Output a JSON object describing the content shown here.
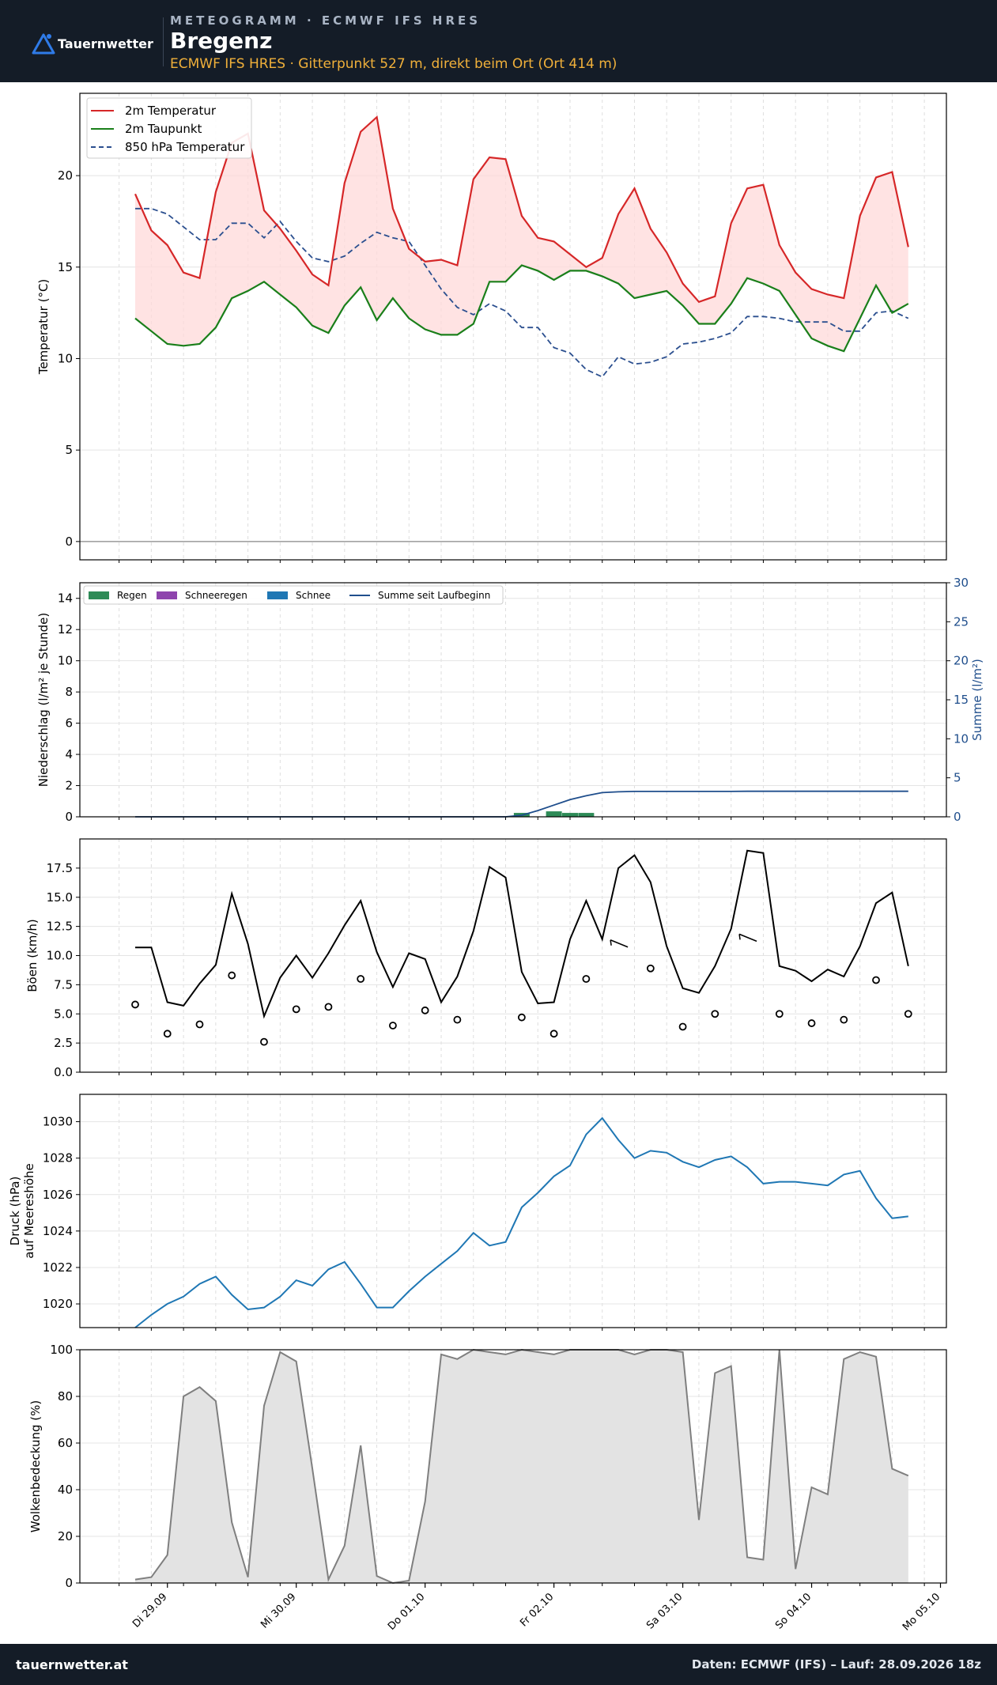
{
  "header": {
    "brand": "Tauernwetter",
    "kicker": "METEOGRAMM · ECMWF IFS HRES",
    "location": "Bregenz",
    "subtitle": "ECMWF IFS HRES · Gitterpunkt 527 m, direkt beim Ort (Ort 414 m)"
  },
  "footer": {
    "site": "tauernwetter.at",
    "source": "Daten: ECMWF (IFS) – Lauf: 28.09.2026 18z"
  },
  "colors": {
    "header_bg": "#141c27",
    "accent": "#f0b03a",
    "temperature": "#d62728",
    "dewpoint": "#1a7f1a",
    "t850": "#2b4f8f",
    "rain": "#2e8b57",
    "sleet": "#8e44ad",
    "snow": "#1f77b4",
    "precip_sum": "#1f4e8c",
    "pressure": "#1f77b4",
    "clouds": "#7f7f7f"
  },
  "chart_data": [
    {
      "type": "line",
      "ylabel": "Temperatur (°C)",
      "ylim": [
        -1,
        24.5
      ],
      "yticks": [
        0,
        5,
        10,
        15,
        20
      ],
      "grid": true,
      "legend": "top-left",
      "x_start": "2026-09-29T00:00",
      "step_hours": 3,
      "series": [
        {
          "name": "2m Temperatur",
          "style": "solid",
          "values": [
            19.0,
            17.0,
            16.2,
            14.7,
            14.4,
            19.1,
            21.8,
            22.3,
            18.1,
            17.1,
            15.9,
            14.6,
            14.0,
            19.6,
            22.4,
            23.2,
            18.2,
            16.0,
            15.3,
            15.4,
            15.1,
            19.8,
            21.0,
            20.9,
            17.8,
            16.6,
            16.4,
            15.7,
            15.0,
            15.5,
            17.9,
            19.3,
            17.1,
            15.8,
            14.1,
            13.1,
            13.4,
            17.4,
            19.3,
            19.5,
            16.2,
            14.7,
            13.8,
            13.5,
            13.3,
            17.8,
            19.9,
            20.2,
            16.1
          ]
        },
        {
          "name": "2m Taupunkt",
          "style": "solid",
          "values": [
            12.2,
            11.5,
            10.8,
            10.7,
            10.8,
            11.7,
            13.3,
            13.7,
            14.2,
            13.5,
            12.8,
            11.8,
            11.4,
            12.9,
            13.9,
            12.1,
            13.3,
            12.2,
            11.6,
            11.3,
            11.3,
            11.9,
            14.2,
            14.2,
            15.1,
            14.8,
            14.3,
            14.8,
            14.8,
            14.5,
            14.1,
            13.3,
            13.5,
            13.7,
            12.9,
            11.9,
            11.9,
            13.0,
            14.4,
            14.1,
            13.7,
            12.4,
            11.1,
            10.7,
            10.4,
            12.2,
            14.0,
            12.5,
            13.0
          ]
        },
        {
          "name": "850 hPa Temperatur",
          "style": "dashed",
          "values": [
            18.2,
            18.2,
            17.9,
            17.2,
            16.5,
            16.5,
            17.4,
            17.4,
            16.6,
            17.5,
            16.4,
            15.5,
            15.3,
            15.6,
            16.3,
            16.9,
            16.6,
            16.4,
            15.1,
            13.8,
            12.8,
            12.4,
            13.0,
            12.6,
            11.7,
            11.7,
            10.6,
            10.3,
            9.4,
            9.0,
            10.1,
            9.7,
            9.8,
            10.1,
            10.8,
            10.9,
            11.1,
            11.4,
            12.3,
            12.3,
            12.2,
            12.0,
            12.0,
            12.0,
            11.5,
            11.5,
            12.5,
            12.6,
            12.2
          ]
        }
      ]
    },
    {
      "type": "bar",
      "ylabel": "Niederschlag (l/m² je Stunde)",
      "y2label": "Summe (l/m²)",
      "ylim": [
        0,
        15
      ],
      "yticks": [
        0,
        2,
        4,
        6,
        8,
        10,
        12,
        14
      ],
      "y2lim": [
        0,
        30
      ],
      "y2ticks": [
        0,
        5,
        10,
        15,
        20,
        25,
        30
      ],
      "grid": true,
      "legend": "top-left",
      "series": [
        {
          "name": "Regen",
          "kind": "bar",
          "values": [
            0,
            0,
            0,
            0,
            0,
            0,
            0,
            0,
            0,
            0,
            0,
            0,
            0,
            0,
            0,
            0,
            0,
            0,
            0,
            0,
            0,
            0,
            0,
            0,
            0.25,
            0,
            0.35,
            0.25,
            0.25,
            0,
            0,
            0,
            0,
            0,
            0,
            0,
            0,
            0,
            0.02,
            0,
            0,
            0,
            0,
            0,
            0,
            0,
            0,
            0,
            0
          ]
        },
        {
          "name": "Schneeregen",
          "kind": "bar",
          "values": []
        },
        {
          "name": "Schnee",
          "kind": "bar",
          "values": []
        },
        {
          "name": "Summe seit Laufbeginn",
          "kind": "line",
          "values": [
            0,
            0,
            0,
            0,
            0,
            0,
            0,
            0,
            0,
            0,
            0,
            0,
            0,
            0,
            0,
            0,
            0,
            0,
            0,
            0,
            0,
            0,
            0,
            0,
            0.2,
            0.8,
            1.5,
            2.2,
            2.7,
            3.1,
            3.2,
            3.25,
            3.25,
            3.25,
            3.25,
            3.25,
            3.25,
            3.25,
            3.27,
            3.27,
            3.27,
            3.27,
            3.27,
            3.27,
            3.27,
            3.27,
            3.27,
            3.27,
            3.27
          ]
        }
      ]
    },
    {
      "type": "line",
      "ylabel": "Böen (km/h)",
      "ylim": [
        0,
        20
      ],
      "yticks": [
        0.0,
        2.5,
        5.0,
        7.5,
        10.0,
        12.5,
        15.0,
        17.5
      ],
      "grid": true,
      "series": [
        {
          "name": "Böen",
          "values": [
            10.7,
            10.7,
            6.0,
            5.7,
            7.6,
            9.2,
            15.3,
            11.0,
            4.8,
            8.1,
            10.0,
            8.1,
            10.2,
            12.6,
            14.7,
            10.3,
            7.3,
            10.2,
            9.7,
            6.0,
            8.2,
            12.1,
            17.6,
            16.7,
            8.6,
            5.9,
            6.0,
            11.4,
            14.7,
            11.4,
            17.5,
            18.6,
            16.3,
            10.8,
            7.2,
            6.8,
            9.1,
            12.3,
            19.0,
            18.8,
            9.1,
            8.7,
            7.8,
            8.8,
            8.2,
            10.8,
            14.5,
            15.4,
            9.1
          ]
        },
        {
          "name": "Wind",
          "kind": "scatter",
          "x_index": [
            0,
            2,
            4,
            6,
            8,
            10,
            12,
            14,
            16,
            18,
            20,
            24,
            26,
            28,
            30,
            32,
            34,
            36,
            38,
            40,
            42,
            44,
            46,
            48
          ],
          "values": [
            5.8,
            3.3,
            4.1,
            8.3,
            2.6,
            5.4,
            5.6,
            8.0,
            4.0,
            5.3,
            4.5,
            4.7,
            3.3,
            8.0,
            11.0,
            8.9,
            3.9,
            5.0,
            11.5,
            5.0,
            4.2,
            4.5,
            7.9,
            5.0
          ]
        }
      ]
    },
    {
      "type": "line",
      "ylabel": "Druck (hPa)",
      "ylabel2": "auf Meereshöhe",
      "ylim": [
        1018.7,
        1031.5
      ],
      "yticks": [
        1020,
        1022,
        1024,
        1026,
        1028,
        1030
      ],
      "grid": true,
      "series": [
        {
          "name": "Druck",
          "values": [
            1018.7,
            1019.4,
            1020.0,
            1020.4,
            1021.1,
            1021.5,
            1020.5,
            1019.7,
            1019.8,
            1020.4,
            1021.3,
            1021.0,
            1021.9,
            1022.3,
            1021.1,
            1019.8,
            1019.8,
            1020.7,
            1021.5,
            1022.2,
            1022.9,
            1023.9,
            1023.2,
            1023.4,
            1025.3,
            1026.1,
            1027.0,
            1027.6,
            1029.3,
            1030.2,
            1029.0,
            1028.0,
            1028.4,
            1028.3,
            1027.8,
            1027.5,
            1027.9,
            1028.1,
            1027.5,
            1026.6,
            1026.7,
            1026.7,
            1026.6,
            1026.5,
            1027.1,
            1027.3,
            1025.8,
            1024.7,
            1024.8
          ]
        }
      ]
    },
    {
      "type": "area",
      "ylabel": "Wolkenbedeckung (%)",
      "ylim": [
        0,
        100
      ],
      "yticks": [
        0,
        20,
        40,
        60,
        80,
        100
      ],
      "grid": true,
      "series": [
        {
          "name": "Wolken",
          "values": [
            1.5,
            2.5,
            12,
            80,
            84,
            78,
            26,
            2.5,
            76,
            99,
            95,
            49,
            1.5,
            16,
            59,
            3,
            0,
            1,
            35,
            98,
            96,
            100,
            99,
            98,
            100,
            99,
            98,
            100,
            100,
            100,
            100,
            98,
            100,
            100,
            99,
            27,
            90,
            93,
            11,
            10,
            100,
            6,
            41,
            38,
            96,
            99,
            97,
            49,
            46
          ]
        }
      ]
    }
  ],
  "x_axis": {
    "tick_labels": [
      "Di 29.09",
      "Mi 30.09",
      "Do 01.10",
      "Fr 02.10",
      "Sa 03.10",
      "So 04.10",
      "Mo 05.10"
    ]
  }
}
